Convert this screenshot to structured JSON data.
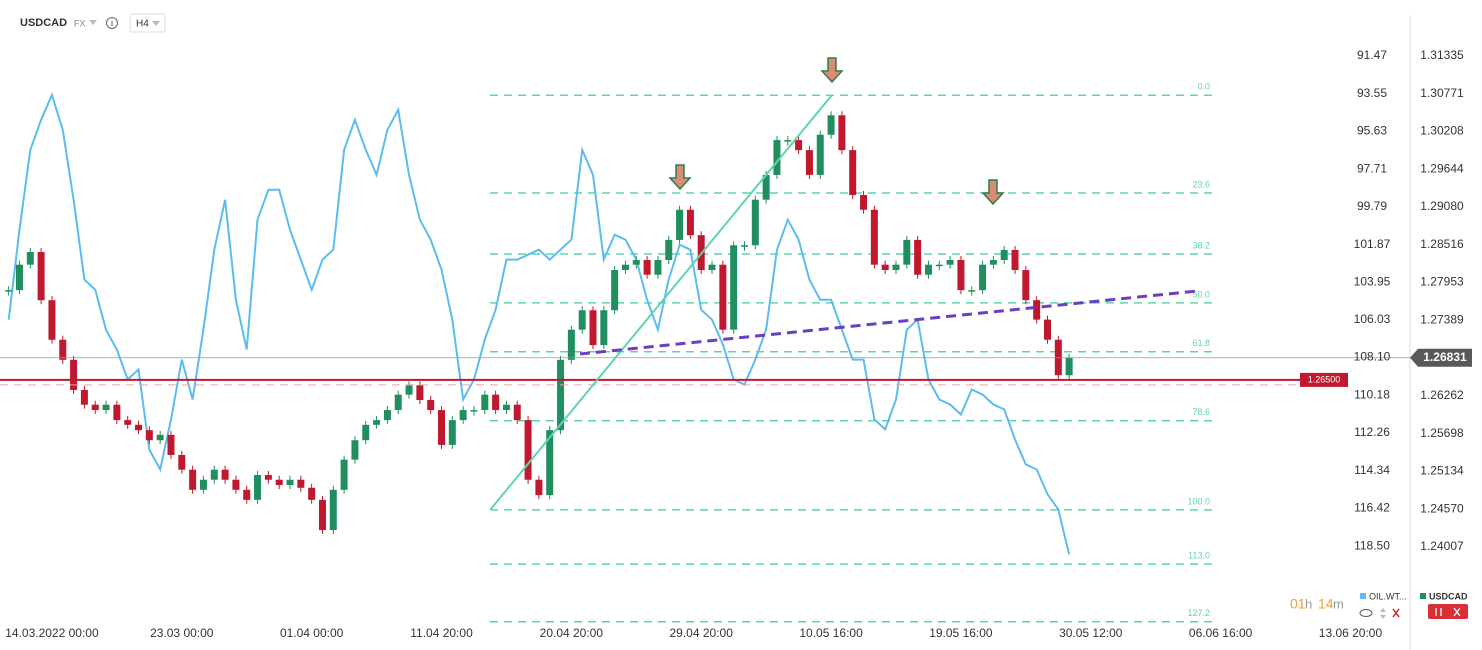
{
  "header": {
    "symbol": "USDCAD",
    "market": "FX",
    "interval": "H4"
  },
  "countdown": {
    "hours": "01",
    "h": "h",
    "minutes": "14",
    "m": "m"
  },
  "chart_data": {
    "type": "candlestick",
    "x": [
      0,
      1,
      2,
      3,
      4,
      5,
      6,
      7,
      8,
      9,
      10,
      11,
      12,
      13,
      14,
      15,
      16,
      17,
      18,
      19,
      20,
      21,
      22,
      23,
      24,
      25,
      26,
      27,
      28,
      29,
      30,
      31,
      32,
      33,
      34,
      35,
      36,
      37,
      38,
      39,
      40,
      41,
      42,
      43,
      44,
      45,
      46,
      47,
      48,
      49,
      50,
      51,
      52,
      53,
      54,
      55,
      56,
      57,
      58,
      59,
      60,
      61,
      62,
      63,
      64,
      65,
      66,
      67,
      68,
      69,
      70,
      71,
      72,
      73,
      74,
      75,
      76,
      77,
      78,
      79,
      80,
      81,
      82,
      83,
      84,
      85,
      86,
      87,
      88,
      89,
      90,
      91,
      92,
      93,
      94,
      95,
      96,
      97,
      98
    ],
    "xlim": [
      -0.8,
      129.5
    ],
    "xticks": [
      {
        "value": 4,
        "label": "14.03.2022  00:00"
      },
      {
        "value": 16,
        "label": "23.03  00:00"
      },
      {
        "value": 28,
        "label": "01.04  00:00"
      },
      {
        "value": 40,
        "label": "11.04  20:00"
      },
      {
        "value": 52,
        "label": "20.04  20:00"
      },
      {
        "value": 64,
        "label": "29.04  20:00"
      },
      {
        "value": 76,
        "label": "10.05  16:00"
      },
      {
        "value": 88,
        "label": "19.05  16:00"
      },
      {
        "value": 100,
        "label": "30.05  12:00"
      },
      {
        "value": 112,
        "label": "06.06  16:00"
      },
      {
        "value": 124,
        "label": "13.06  20:00"
      }
    ],
    "ylim": [
      1.228,
      1.3195
    ],
    "yticks": [
      1.31335,
      1.30771,
      1.30208,
      1.29644,
      {
        "value": 1.2908,
        "label": "1.29080"
      },
      1.28516,
      1.27953,
      1.27389,
      1.26262,
      1.25698,
      1.25134,
      {
        "value": 1.2457,
        "label": "1.24570"
      },
      1.24007
    ],
    "y2lim": [
      89.2,
      123.0
    ],
    "y2_inverted": true,
    "y2ticks": [
      91.47,
      93.55,
      95.63,
      97.71,
      99.79,
      101.87,
      103.95,
      106.03,
      {
        "value": 108.1,
        "label": "108.10"
      },
      110.18,
      112.26,
      114.34,
      116.42,
      {
        "value": 118.5,
        "label": "118.50"
      }
    ],
    "series": [
      {
        "name": "USDCAD",
        "type": "candlestick",
        "color": "#1f8f5f",
        "up_color": "#1f8f5f",
        "down_color": "#c0182e",
        "values": [
          1.2784,
          1.2822,
          1.2841,
          1.2769,
          1.271,
          1.268,
          1.2635,
          1.2613,
          1.2605,
          1.2613,
          1.259,
          1.2583,
          1.2575,
          1.256,
          1.2568,
          1.2538,
          1.2516,
          1.2486,
          1.2501,
          1.2516,
          1.2501,
          1.2486,
          1.2471,
          1.2508,
          1.2501,
          1.2493,
          1.2501,
          1.2489,
          1.2471,
          1.2426,
          1.2486,
          1.2531,
          1.256,
          1.2583,
          1.259,
          1.2605,
          1.2628,
          1.2642,
          1.262,
          1.2605,
          1.2553,
          1.259,
          1.2605,
          1.2605,
          1.2628,
          1.2605,
          1.2613,
          1.259,
          1.2501,
          1.2478,
          1.2575,
          1.268,
          1.2725,
          1.2754,
          1.2702,
          1.2754,
          1.2814,
          1.2822,
          1.2829,
          1.2807,
          1.2829,
          1.2859,
          1.2904,
          1.2866,
          1.2814,
          1.2822,
          1.2725,
          1.2851,
          1.2851,
          1.2919,
          1.2956,
          1.3008,
          1.3008,
          1.2993,
          1.2956,
          1.3016,
          1.3045,
          1.2993,
          1.2926,
          1.2904,
          1.2822,
          1.2814,
          1.2822,
          1.2859,
          1.2807,
          1.2822,
          1.2822,
          1.2829,
          1.2784,
          1.2784,
          1.2822,
          1.2829,
          1.2844,
          1.2814,
          1.2769,
          1.274,
          1.271,
          1.2657,
          1.2683
        ]
      },
      {
        "name": "OIL.WT...",
        "type": "line",
        "axis": "y2",
        "color": "#5bbcf0",
        "values": [
          106.01,
          101.05,
          96.65,
          94.99,
          93.62,
          95.54,
          99.4,
          103.8,
          104.36,
          106.56,
          107.66,
          109.31,
          108.76,
          113.17,
          114.27,
          111.51,
          108.21,
          110.41,
          106.56,
          102.15,
          99.4,
          104.91,
          107.66,
          100.5,
          98.85,
          98.85,
          101.05,
          102.7,
          104.36,
          102.7,
          102.15,
          96.65,
          94.99,
          96.65,
          98.02,
          95.54,
          94.44,
          98.02,
          100.5,
          101.6,
          103.25,
          106.01,
          110.41,
          109.31,
          107.11,
          105.46,
          102.7,
          102.7,
          102.43,
          102.15,
          102.7,
          102.15,
          101.6,
          96.65,
          98.02,
          102.7,
          101.33,
          101.6,
          102.7,
          104.91,
          106.56,
          103.8,
          101.88,
          102.15,
          105.46,
          106.01,
          107.38,
          109.31,
          109.59,
          108.21,
          106.56,
          102.15,
          100.5,
          101.6,
          103.8,
          104.91,
          104.91,
          106.56,
          108.21,
          108.21,
          111.51,
          112.06,
          110.41,
          106.56,
          106.01,
          109.31,
          110.41,
          110.69,
          111.24,
          109.86,
          110.14,
          110.69,
          110.96,
          112.62,
          113.99,
          114.27,
          115.64,
          116.47,
          118.95
        ]
      }
    ],
    "fib_levels": [
      {
        "label": "0.0",
        "value": 1.3075
      },
      {
        "label": "23.6",
        "value": 1.2929
      },
      {
        "label": "38.2",
        "value": 1.2838
      },
      {
        "label": "50.0",
        "value": 1.2765
      },
      {
        "label": "61.8",
        "value": 1.2692
      },
      {
        "label": "78.6",
        "value": 1.2589
      },
      {
        "label": "100.0",
        "value": 1.2456
      },
      {
        "label": "113.0",
        "value": 1.2375
      },
      {
        "label": "127.2",
        "value": 1.2289
      }
    ],
    "fib_color": "#5fd3b0",
    "price_level": {
      "value": 1.265,
      "label": "1.26500",
      "color": "#c0182e"
    },
    "current_price": 1.26831
  }
}
